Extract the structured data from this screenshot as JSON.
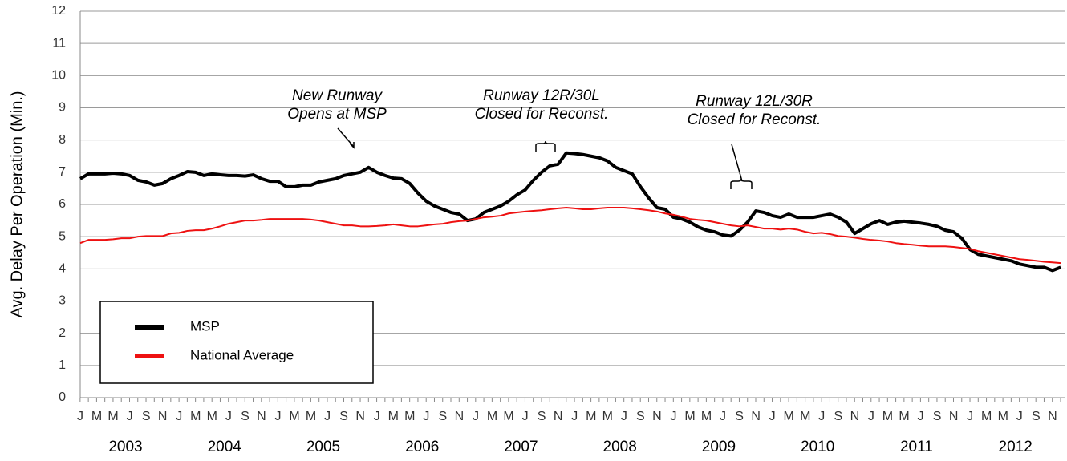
{
  "chart_data": {
    "type": "line",
    "y_label": "Avg. Delay Per Operation (Min.)",
    "categories": [
      "J",
      null,
      "M",
      null,
      "M",
      null,
      "J",
      null,
      "S",
      null,
      "N",
      null,
      "J",
      null,
      "M",
      null,
      "M",
      null,
      "J",
      null,
      "S",
      null,
      "N",
      null,
      "J",
      null,
      "M",
      null,
      "M",
      null,
      "J",
      null,
      "S",
      null,
      "N",
      null,
      "J",
      null,
      "M",
      null,
      "M",
      null,
      "J",
      null,
      "S",
      null,
      "N",
      null,
      "J",
      null,
      "M",
      null,
      "M",
      null,
      "J",
      null,
      "S",
      null,
      "N",
      null,
      "J",
      null,
      "M",
      null,
      "M",
      null,
      "J",
      null,
      "S",
      null,
      "N",
      null,
      "J",
      null,
      "M",
      null,
      "M",
      null,
      "J",
      null,
      "S",
      null,
      "N",
      null,
      "J",
      null,
      "M",
      null,
      "M",
      null,
      "J",
      null,
      "S",
      null,
      "N",
      null,
      "J",
      null,
      "M",
      null,
      "M",
      null,
      "J",
      null,
      "S",
      null,
      "N",
      null,
      "J",
      null,
      "M",
      null,
      "M",
      null,
      "J",
      null,
      "S",
      null,
      "N",
      null
    ],
    "years": [
      "2003",
      "2004",
      "2005",
      "2006",
      "2007",
      "2008",
      "2009",
      "2010",
      "2011",
      "2012"
    ],
    "series": [
      {
        "name": "MSP",
        "color": "#000000",
        "width": 4,
        "values": [
          6.8,
          6.95,
          6.95,
          6.95,
          6.97,
          6.95,
          6.9,
          6.75,
          6.7,
          6.6,
          6.65,
          6.8,
          6.9,
          7.02,
          7.0,
          6.9,
          6.95,
          6.92,
          6.9,
          6.9,
          6.88,
          6.92,
          6.8,
          6.72,
          6.72,
          6.55,
          6.55,
          6.6,
          6.6,
          6.7,
          6.75,
          6.8,
          6.9,
          6.95,
          7.0,
          7.15,
          7.0,
          6.9,
          6.82,
          6.8,
          6.65,
          6.35,
          6.1,
          5.95,
          5.85,
          5.75,
          5.7,
          5.5,
          5.55,
          5.75,
          5.85,
          5.95,
          6.1,
          6.3,
          6.45,
          6.75,
          7.0,
          7.2,
          7.25,
          7.6,
          7.58,
          7.55,
          7.5,
          7.45,
          7.35,
          7.15,
          7.05,
          6.95,
          6.55,
          6.2,
          5.9,
          5.85,
          5.6,
          5.55,
          5.45,
          5.3,
          5.2,
          5.15,
          5.05,
          5.02,
          5.2,
          5.45,
          5.8,
          5.75,
          5.65,
          5.6,
          5.7,
          5.6,
          5.6,
          5.6,
          5.65,
          5.7,
          5.6,
          5.45,
          5.1,
          5.25,
          5.4,
          5.5,
          5.38,
          5.45,
          5.48,
          5.45,
          5.42,
          5.38,
          5.32,
          5.2,
          5.15,
          4.95,
          4.6,
          4.45,
          4.4,
          4.35,
          4.3,
          4.25,
          4.15,
          4.1,
          4.05,
          4.05,
          3.95,
          4.05
        ]
      },
      {
        "name": "National Average",
        "color": "#ee1111",
        "width": 2,
        "values": [
          4.8,
          4.9,
          4.9,
          4.9,
          4.92,
          4.95,
          4.95,
          5.0,
          5.02,
          5.02,
          5.02,
          5.1,
          5.12,
          5.18,
          5.2,
          5.2,
          5.25,
          5.32,
          5.4,
          5.45,
          5.5,
          5.5,
          5.52,
          5.55,
          5.55,
          5.55,
          5.55,
          5.55,
          5.53,
          5.5,
          5.45,
          5.4,
          5.35,
          5.35,
          5.32,
          5.32,
          5.33,
          5.35,
          5.38,
          5.35,
          5.32,
          5.32,
          5.35,
          5.38,
          5.4,
          5.45,
          5.48,
          5.5,
          5.55,
          5.6,
          5.62,
          5.65,
          5.72,
          5.75,
          5.78,
          5.8,
          5.82,
          5.85,
          5.88,
          5.9,
          5.88,
          5.85,
          5.85,
          5.88,
          5.9,
          5.9,
          5.9,
          5.88,
          5.85,
          5.82,
          5.78,
          5.72,
          5.68,
          5.62,
          5.55,
          5.52,
          5.5,
          5.45,
          5.4,
          5.35,
          5.32,
          5.35,
          5.3,
          5.25,
          5.25,
          5.22,
          5.25,
          5.22,
          5.15,
          5.1,
          5.12,
          5.08,
          5.02,
          5.0,
          4.97,
          4.93,
          4.9,
          4.88,
          4.85,
          4.8,
          4.77,
          4.75,
          4.72,
          4.7,
          4.7,
          4.7,
          4.68,
          4.65,
          4.62,
          4.55,
          4.5,
          4.45,
          4.4,
          4.35,
          4.3,
          4.28,
          4.25,
          4.22,
          4.2,
          4.18
        ]
      }
    ],
    "ylim": [
      0,
      12
    ],
    "yticks": [
      0,
      1,
      2,
      3,
      4,
      5,
      6,
      7,
      8,
      9,
      10,
      11,
      12
    ],
    "grid": true,
    "legend": "lower-left",
    "annotations": [
      {
        "lines": [
          "New Runway",
          "Opens at MSP"
        ]
      },
      {
        "lines": [
          "Runway 12R/30L",
          "Closed for Reconst."
        ]
      },
      {
        "lines": [
          "Runway 12L/30R",
          "Closed for Reconst."
        ]
      }
    ]
  }
}
